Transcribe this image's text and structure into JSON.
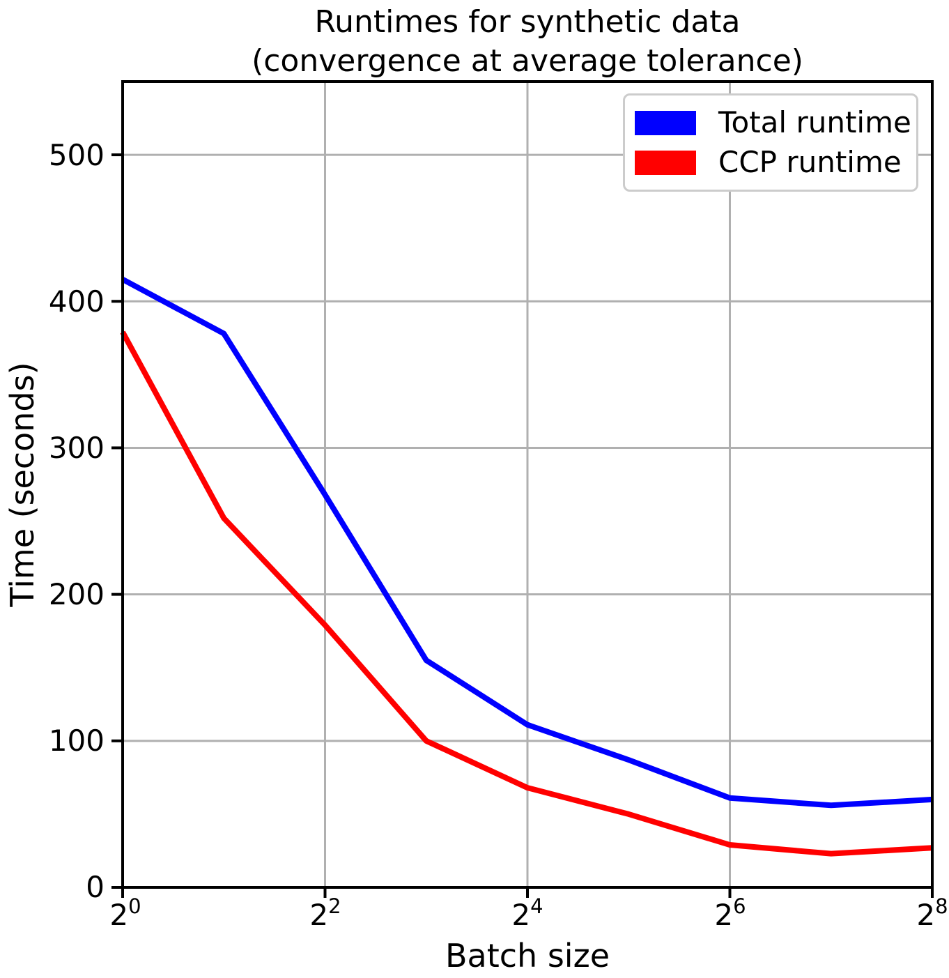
{
  "chart_data": {
    "type": "line",
    "title_line1": "Runtimes for synthetic data",
    "title_line2": "(convergence at average tolerance)",
    "xlabel": "Batch size",
    "ylabel": "Time (seconds)",
    "x_scale": "log2",
    "xlim_exp": [
      0,
      8
    ],
    "ylim": [
      0,
      550
    ],
    "grid": true,
    "legend_position": "upper right",
    "xticks_exp": [
      0,
      2,
      4,
      6,
      8
    ],
    "xtick_labels": [
      {
        "base": "2",
        "exp": "0"
      },
      {
        "base": "2",
        "exp": "2"
      },
      {
        "base": "2",
        "exp": "4"
      },
      {
        "base": "2",
        "exp": "6"
      },
      {
        "base": "2",
        "exp": "8"
      }
    ],
    "yticks": [
      0,
      100,
      200,
      300,
      400,
      500
    ],
    "ytick_labels": [
      "0",
      "100",
      "200",
      "300",
      "400",
      "500"
    ],
    "series": [
      {
        "name": "Total runtime",
        "color": "#0000ff",
        "batch_sizes": [
          1,
          2,
          4,
          8,
          16,
          32,
          64,
          128,
          256
        ],
        "x_exp": [
          0,
          1,
          2,
          3,
          4,
          5,
          6,
          7,
          8
        ],
        "values": [
          415,
          378,
          268,
          155,
          111,
          87,
          61,
          56,
          60
        ]
      },
      {
        "name": "CCP runtime",
        "color": "#ff0000",
        "batch_sizes": [
          1,
          2,
          4,
          8,
          16,
          32,
          64,
          128,
          256
        ],
        "x_exp": [
          0,
          1,
          2,
          3,
          4,
          5,
          6,
          7,
          8
        ],
        "values": [
          379,
          252,
          179,
          100,
          68,
          50,
          29,
          23,
          27
        ]
      }
    ]
  },
  "legend": {
    "items": [
      {
        "label": "Total runtime",
        "color": "#0000ff"
      },
      {
        "label": "CCP runtime",
        "color": "#ff0000"
      }
    ]
  },
  "colors": {
    "grid": "#b0b0b0",
    "spine": "#000000",
    "background": "#ffffff",
    "legend_border": "#cccccc"
  }
}
